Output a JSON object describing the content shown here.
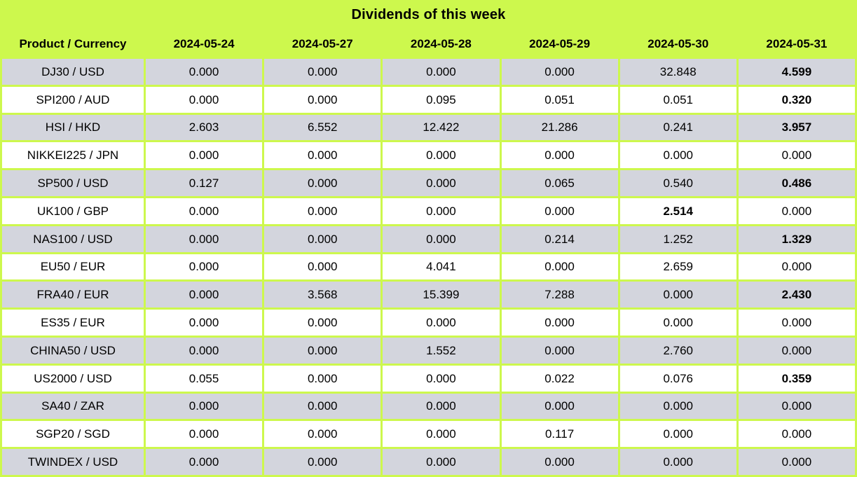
{
  "title": "Dividends of this week",
  "colors": {
    "background_chartreuse": "#cdf84d",
    "row_shaded": "#d3d5dd",
    "row_plain": "#ffffff",
    "text": "#000000"
  },
  "chart_data": {
    "type": "table",
    "title": "Dividends of this week",
    "product_header": "Product / Currency",
    "date_headers": [
      "2024-05-24",
      "2024-05-27",
      "2024-05-28",
      "2024-05-29",
      "2024-05-30",
      "2024-05-31"
    ],
    "rows": [
      {
        "product": "DJ30 / USD",
        "values": [
          "0.000",
          "0.000",
          "0.000",
          "0.000",
          "32.848",
          "4.599"
        ],
        "bold_columns": [
          5
        ]
      },
      {
        "product": "SPI200 / AUD",
        "values": [
          "0.000",
          "0.000",
          "0.095",
          "0.051",
          "0.051",
          "0.320"
        ],
        "bold_columns": [
          5
        ]
      },
      {
        "product": "HSI / HKD",
        "values": [
          "2.603",
          "6.552",
          "12.422",
          "21.286",
          "0.241",
          "3.957"
        ],
        "bold_columns": [
          5
        ]
      },
      {
        "product": "NIKKEI225 / JPN",
        "values": [
          "0.000",
          "0.000",
          "0.000",
          "0.000",
          "0.000",
          "0.000"
        ],
        "bold_columns": []
      },
      {
        "product": "SP500 / USD",
        "values": [
          "0.127",
          "0.000",
          "0.000",
          "0.065",
          "0.540",
          "0.486"
        ],
        "bold_columns": [
          5
        ]
      },
      {
        "product": "UK100 / GBP",
        "values": [
          "0.000",
          "0.000",
          "0.000",
          "0.000",
          "2.514",
          "0.000"
        ],
        "bold_columns": [
          4
        ]
      },
      {
        "product": "NAS100 / USD",
        "values": [
          "0.000",
          "0.000",
          "0.000",
          "0.214",
          "1.252",
          "1.329"
        ],
        "bold_columns": [
          5
        ]
      },
      {
        "product": "EU50 / EUR",
        "values": [
          "0.000",
          "0.000",
          "4.041",
          "0.000",
          "2.659",
          "0.000"
        ],
        "bold_columns": []
      },
      {
        "product": "FRA40 / EUR",
        "values": [
          "0.000",
          "3.568",
          "15.399",
          "7.288",
          "0.000",
          "2.430"
        ],
        "bold_columns": [
          5
        ]
      },
      {
        "product": "ES35 / EUR",
        "values": [
          "0.000",
          "0.000",
          "0.000",
          "0.000",
          "0.000",
          "0.000"
        ],
        "bold_columns": []
      },
      {
        "product": "CHINA50 / USD",
        "values": [
          "0.000",
          "0.000",
          "1.552",
          "0.000",
          "2.760",
          "0.000"
        ],
        "bold_columns": []
      },
      {
        "product": "US2000 / USD",
        "values": [
          "0.055",
          "0.000",
          "0.000",
          "0.022",
          "0.076",
          "0.359"
        ],
        "bold_columns": [
          5
        ]
      },
      {
        "product": "SA40 / ZAR",
        "values": [
          "0.000",
          "0.000",
          "0.000",
          "0.000",
          "0.000",
          "0.000"
        ],
        "bold_columns": []
      },
      {
        "product": "SGP20 / SGD",
        "values": [
          "0.000",
          "0.000",
          "0.000",
          "0.117",
          "0.000",
          "0.000"
        ],
        "bold_columns": []
      },
      {
        "product": "TWINDEX / USD",
        "values": [
          "0.000",
          "0.000",
          "0.000",
          "0.000",
          "0.000",
          "0.000"
        ],
        "bold_columns": []
      }
    ]
  }
}
